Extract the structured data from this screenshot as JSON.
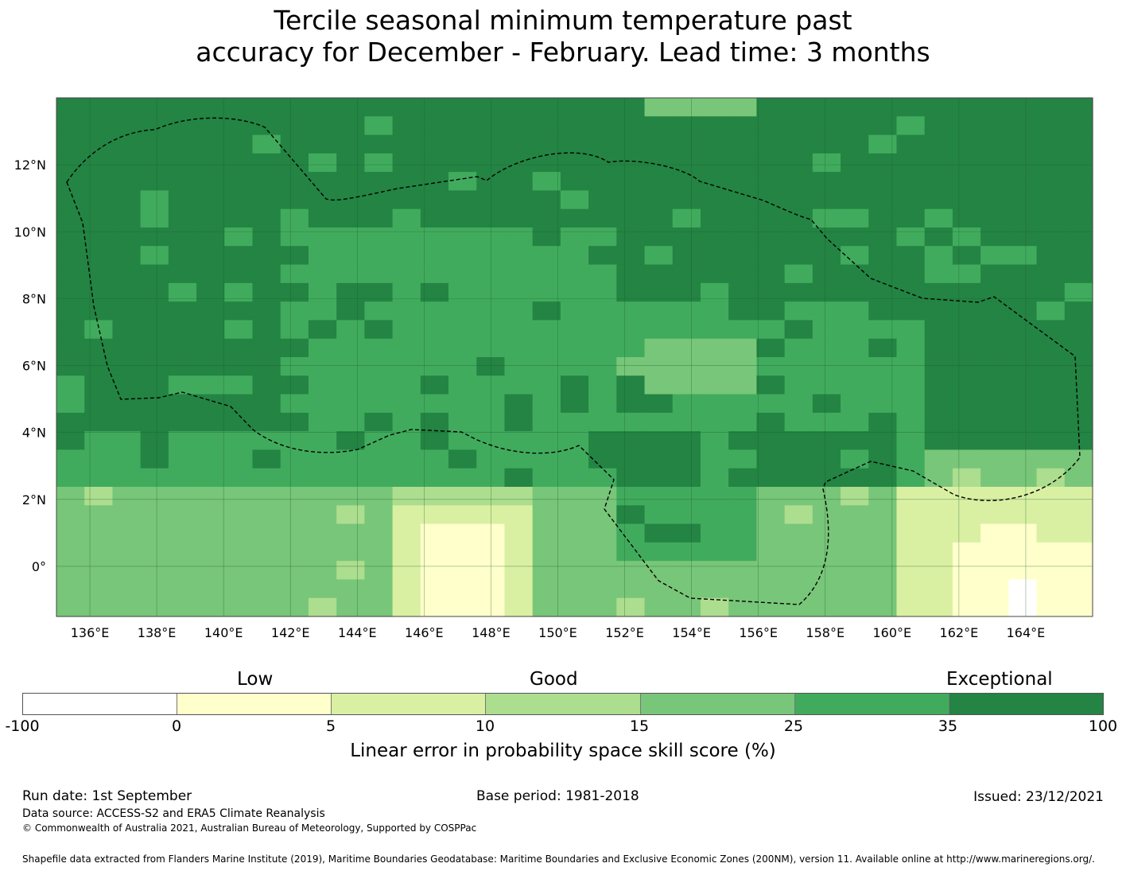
{
  "title": {
    "line1": "Tercile seasonal minimum temperature past",
    "line2": "accuracy for December - February. Lead time: 3 months"
  },
  "map": {
    "x_tick_labels": [
      "136°E",
      "138°E",
      "140°E",
      "142°E",
      "144°E",
      "146°E",
      "148°E",
      "150°E",
      "152°E",
      "154°E",
      "156°E",
      "158°E",
      "160°E",
      "162°E",
      "164°E"
    ],
    "y_tick_labels": [
      "12°N",
      "10°N",
      "8°N",
      "6°N",
      "4°N",
      "2°N",
      "0°"
    ],
    "lon_range": [
      135,
      166
    ],
    "lat_range": [
      -1.5,
      14
    ],
    "grid": true,
    "eez_boundary": "dashed",
    "colors": {
      "white": "#ffffff",
      "c0_5": "#ffffcc",
      "c5_10": "#d9f0a3",
      "c10_15": "#addd8e",
      "c15_25": "#78c679",
      "c25_35": "#41ab5d",
      "c35_100": "#238443"
    }
  },
  "legend": {
    "categories": [
      "Low",
      "Good",
      "Exceptional"
    ],
    "ticks": [
      "-100",
      "0",
      "5",
      "10",
      "15",
      "25",
      "35",
      "100"
    ],
    "colors": [
      "#ffffff",
      "#ffffcc",
      "#d9f0a3",
      "#addd8e",
      "#78c679",
      "#41ab5d",
      "#238443"
    ],
    "label": "Linear error in probability space skill score (%)"
  },
  "footer": {
    "run_date": "Run date: 1st September",
    "base_period": "Base period: 1981-2018",
    "issued": "Issued: 23/12/2021",
    "data_source": "Data source: ACCESS-S2 and ERA5 Climate Reanalysis",
    "copyright": "© Commonwealth of Australia 2021, Australian Bureau of Meteorology, Supported by COSPPac",
    "shapefile": "Shapefile data extracted from Flanders Marine Institute (2019), Maritime Boundaries Geodatabase: Maritime Boundaries and Exclusive Economic Zones (200NM), version 11. Available online at http://www.marineregions.org/."
  }
}
